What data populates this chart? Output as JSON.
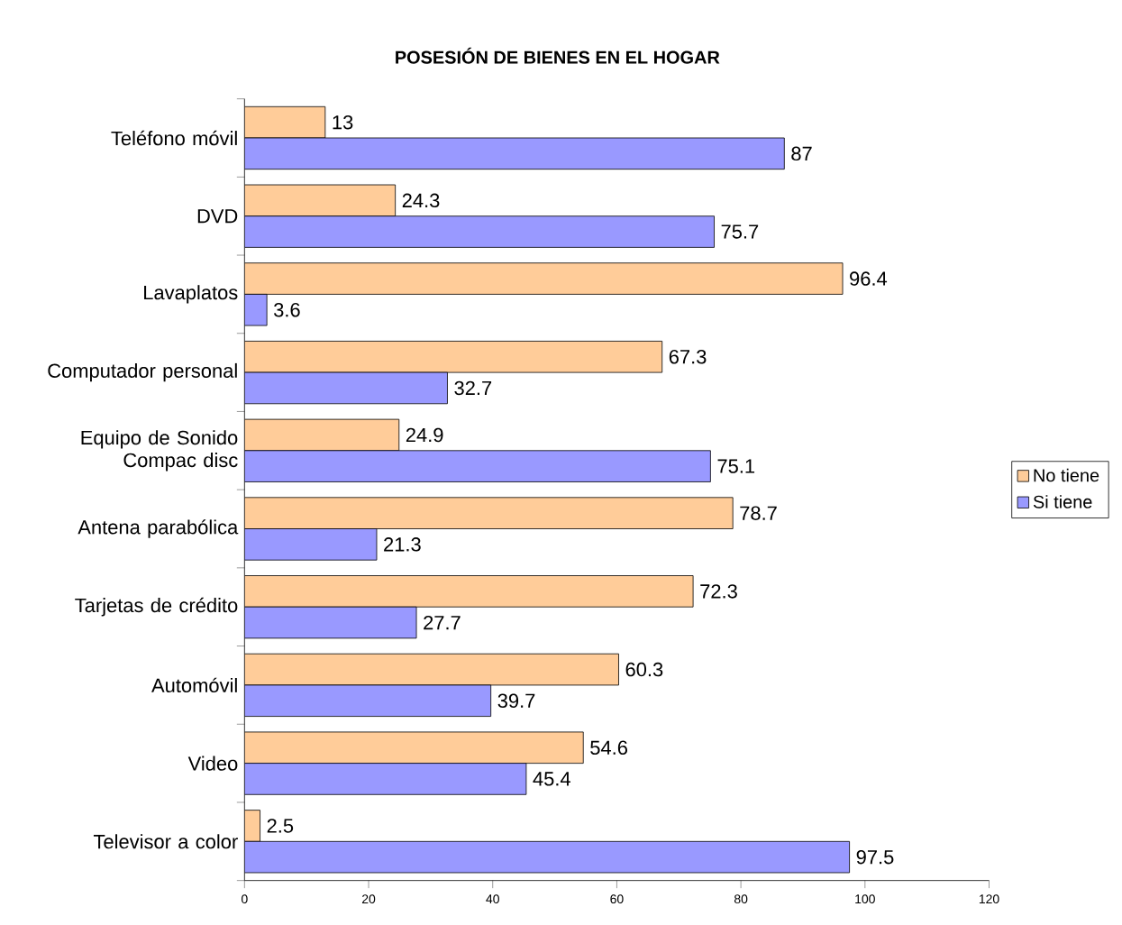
{
  "chart_data": {
    "type": "bar",
    "orientation": "horizontal",
    "title": "POSESIÓN DE BIENES EN EL HOGAR",
    "categories": [
      "Teléfono móvil",
      "DVD",
      "Lavaplatos",
      "Computador personal",
      "Equipo de Sonido Compac disc",
      "Antena parabólica",
      "Tarjetas de crédito",
      "Automóvil",
      "Video",
      "Televisor a color"
    ],
    "series": [
      {
        "name": "No tiene",
        "color": "#ffcc99",
        "values": [
          13,
          24.3,
          96.4,
          67.3,
          24.9,
          78.7,
          72.3,
          60.3,
          54.6,
          2.5
        ]
      },
      {
        "name": "Si tiene",
        "color": "#9999ff",
        "values": [
          87,
          75.7,
          3.6,
          32.7,
          75.1,
          21.3,
          27.7,
          39.7,
          45.4,
          97.5
        ]
      }
    ],
    "xlim": [
      0,
      120
    ],
    "xticks": [
      0,
      20,
      40,
      60,
      80,
      100,
      120
    ],
    "data_labels": true,
    "legend": "right",
    "grid": false
  }
}
